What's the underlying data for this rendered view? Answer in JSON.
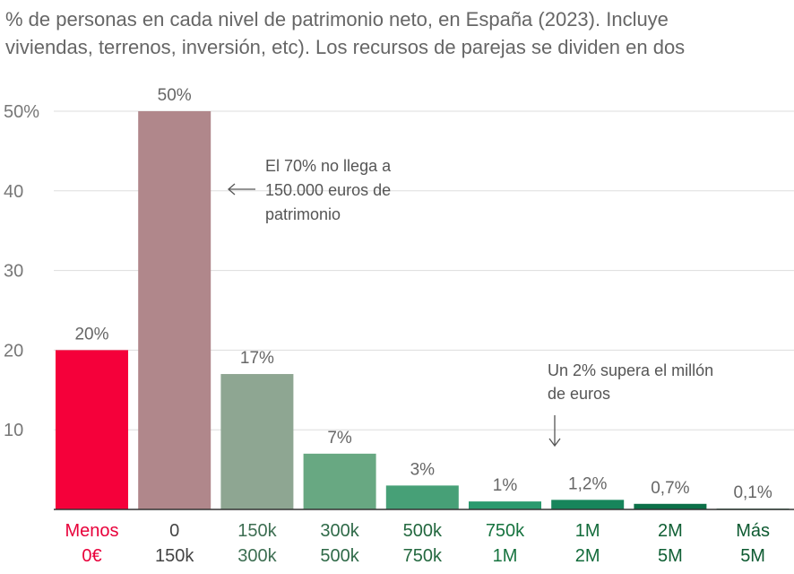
{
  "subtitle": {
    "line1": "% de personas en cada nivel de patrimonio neto, en España (2023). Incluye",
    "line2": "viviendas, terrenos, inversión, etc). Los recursos de parejas se dividen en dos"
  },
  "chart_data": {
    "type": "bar",
    "categories": [
      [
        "Menos",
        "0€"
      ],
      [
        "0",
        "150k"
      ],
      [
        "150k",
        "300k"
      ],
      [
        "300k",
        "500k"
      ],
      [
        "500k",
        "750k"
      ],
      [
        "750k",
        "1M"
      ],
      [
        "1M",
        "2M"
      ],
      [
        "2M",
        "5M"
      ],
      [
        "Más",
        "5M"
      ]
    ],
    "values": [
      20,
      50,
      17,
      7,
      3,
      1,
      1.2,
      0.7,
      0.1
    ],
    "value_labels": [
      "20%",
      "50%",
      "17%",
      "7%",
      "3%",
      "1%",
      "1,2%",
      "0,7%",
      "0,1%"
    ],
    "bar_colors": [
      "#f5003a",
      "#b0878b",
      "#8ea692",
      "#68a882",
      "#47a077",
      "#2a9a6e",
      "#17855b",
      "#0c7048",
      "#0a6542"
    ],
    "label_colors": [
      "#e8003a",
      "#444444",
      "#3d6e52",
      "#2f6a48",
      "#23683f",
      "#16733f",
      "#136b3b",
      "#0f5f34",
      "#0d5a31"
    ],
    "ylim": [
      0,
      50
    ],
    "yticks": [
      10,
      20,
      30,
      40,
      50
    ],
    "ytick_labels": [
      "10",
      "20",
      "30",
      "40",
      "50%"
    ],
    "xlabel": "",
    "ylabel": "",
    "grid": true,
    "annotations": {
      "a1": [
        "El 70% no llega a",
        "150.000 euros de",
        "patrimonio"
      ],
      "a2": [
        "Un 2% supera el millón",
        "de euros"
      ]
    }
  }
}
